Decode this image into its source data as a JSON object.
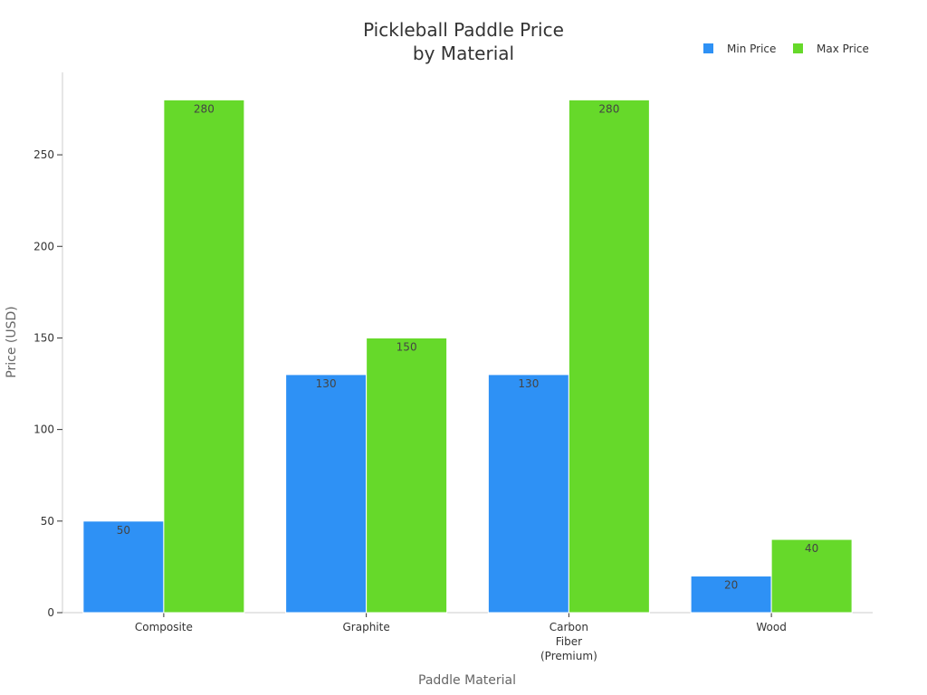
{
  "chart_data": {
    "type": "bar",
    "title": [
      "Pickleball Paddle Price",
      "by Material"
    ],
    "xlabel": "Paddle Material",
    "ylabel": "Price (USD)",
    "categories": [
      [
        "Composite"
      ],
      [
        "Graphite"
      ],
      [
        "Carbon",
        "Fiber",
        "(Premium)"
      ],
      [
        "Wood"
      ]
    ],
    "series": [
      {
        "name": "Min Price",
        "color": "#2E91F5",
        "values": [
          50,
          130,
          130,
          20
        ]
      },
      {
        "name": "Max Price",
        "color": "#66D92A",
        "values": [
          280,
          150,
          280,
          40
        ]
      }
    ],
    "ylim": [
      0,
      295
    ],
    "yticks": [
      0,
      50,
      100,
      150,
      200,
      250
    ],
    "legend": "top-right",
    "grid": false
  }
}
